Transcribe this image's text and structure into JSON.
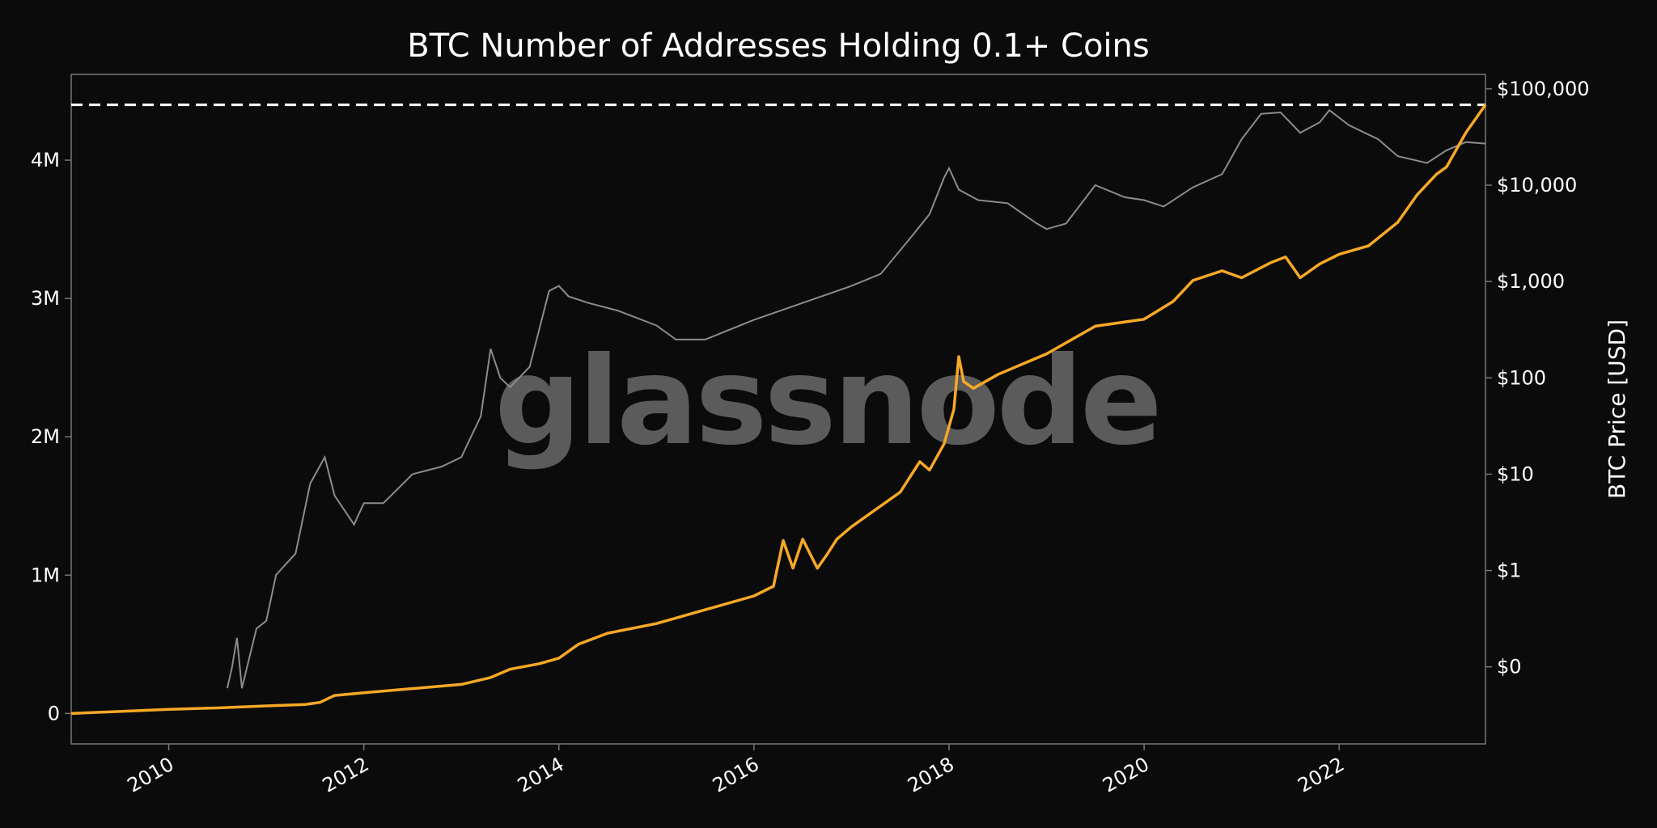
{
  "watermark": "glassnode",
  "chart_data": {
    "type": "line",
    "title": "BTC Number of Addresses Holding 0.1+ Coins",
    "xlabel": "",
    "ylabel": "",
    "ylabel_right": "BTC Price [USD]",
    "x_ticks": [
      "2010",
      "2012",
      "2014",
      "2016",
      "2018",
      "2020",
      "2022"
    ],
    "y_ticks_left": [
      "0",
      "1M",
      "2M",
      "3M",
      "4M"
    ],
    "y_ticks_right": [
      "$0",
      "$1",
      "$10",
      "$100",
      "$1,000",
      "$10,000",
      "$100,000"
    ],
    "xlim": [
      2009.0,
      2023.5
    ],
    "ylim_left": [
      -220000,
      4620000
    ],
    "ylim_right_log10": [
      -1.8,
      5.15
    ],
    "right_scale": "log",
    "reference_line": {
      "value": 4400000,
      "style": "dashed",
      "color": "#ffffff"
    },
    "colors": {
      "addresses": "#f7a826",
      "price": "#8c8c8c",
      "background": "#0b0b0b",
      "frame": "#777777"
    },
    "series": [
      {
        "axis": "left",
        "color": "#f7a826",
        "x": [
          2009.0,
          2010.0,
          2010.5,
          2011.0,
          2011.4,
          2011.55,
          2011.7,
          2012.0,
          2012.5,
          2013.0,
          2013.3,
          2013.5,
          2013.8,
          2014.0,
          2014.2,
          2014.5,
          2015.0,
          2015.5,
          2016.0,
          2016.2,
          2016.3,
          2016.4,
          2016.5,
          2016.65,
          2016.75,
          2016.85,
          2017.0,
          2017.5,
          2017.7,
          2017.8,
          2017.95,
          2018.05,
          2018.1,
          2018.15,
          2018.25,
          2018.5,
          2019.0,
          2019.5,
          2019.9,
          2020.0,
          2020.3,
          2020.5,
          2020.8,
          2021.0,
          2021.3,
          2021.45,
          2021.6,
          2021.8,
          2022.0,
          2022.3,
          2022.6,
          2022.8,
          2023.0,
          2023.1,
          2023.3,
          2023.5
        ],
        "values": [
          0,
          30000,
          40000,
          55000,
          65000,
          80000,
          130000,
          150000,
          180000,
          210000,
          260000,
          320000,
          360000,
          400000,
          500000,
          580000,
          650000,
          750000,
          850000,
          920000,
          1250000,
          1050000,
          1260000,
          1050000,
          1150000,
          1260000,
          1350000,
          1600000,
          1820000,
          1760000,
          1950000,
          2200000,
          2580000,
          2400000,
          2350000,
          2450000,
          2600000,
          2800000,
          2840000,
          2850000,
          2980000,
          3130000,
          3200000,
          3150000,
          3260000,
          3300000,
          3150000,
          3250000,
          3320000,
          3380000,
          3550000,
          3750000,
          3900000,
          3950000,
          4200000,
          4400000
        ]
      },
      {
        "axis": "right",
        "color": "#8c8c8c",
        "x": [
          2010.6,
          2010.65,
          2010.7,
          2010.75,
          2010.9,
          2011.0,
          2011.1,
          2011.3,
          2011.45,
          2011.6,
          2011.7,
          2011.9,
          2012.0,
          2012.2,
          2012.5,
          2012.8,
          2013.0,
          2013.2,
          2013.3,
          2013.4,
          2013.5,
          2013.7,
          2013.9,
          2014.0,
          2014.1,
          2014.3,
          2014.6,
          2015.0,
          2015.2,
          2015.5,
          2016.0,
          2016.5,
          2017.0,
          2017.3,
          2017.6,
          2017.8,
          2017.95,
          2018.0,
          2018.1,
          2018.3,
          2018.6,
          2018.9,
          2019.0,
          2019.2,
          2019.5,
          2019.8,
          2020.0,
          2020.2,
          2020.5,
          2020.8,
          2021.0,
          2021.2,
          2021.4,
          2021.6,
          2021.8,
          2021.9,
          2022.1,
          2022.4,
          2022.6,
          2022.9,
          2023.1,
          2023.3,
          2023.5
        ],
        "values": [
          0.06,
          0.1,
          0.2,
          0.06,
          0.25,
          0.3,
          0.9,
          1.5,
          8,
          15,
          6,
          3,
          5,
          5,
          10,
          12,
          15,
          40,
          200,
          100,
          80,
          130,
          800,
          900,
          700,
          600,
          500,
          350,
          250,
          250,
          400,
          600,
          900,
          1200,
          2800,
          5000,
          12000,
          15000,
          9000,
          7000,
          6500,
          4000,
          3500,
          4000,
          10000,
          7500,
          7000,
          6000,
          9500,
          13000,
          30000,
          55000,
          57000,
          35000,
          45000,
          60000,
          42000,
          30000,
          20000,
          17000,
          23000,
          28000,
          27000
        ]
      }
    ]
  }
}
